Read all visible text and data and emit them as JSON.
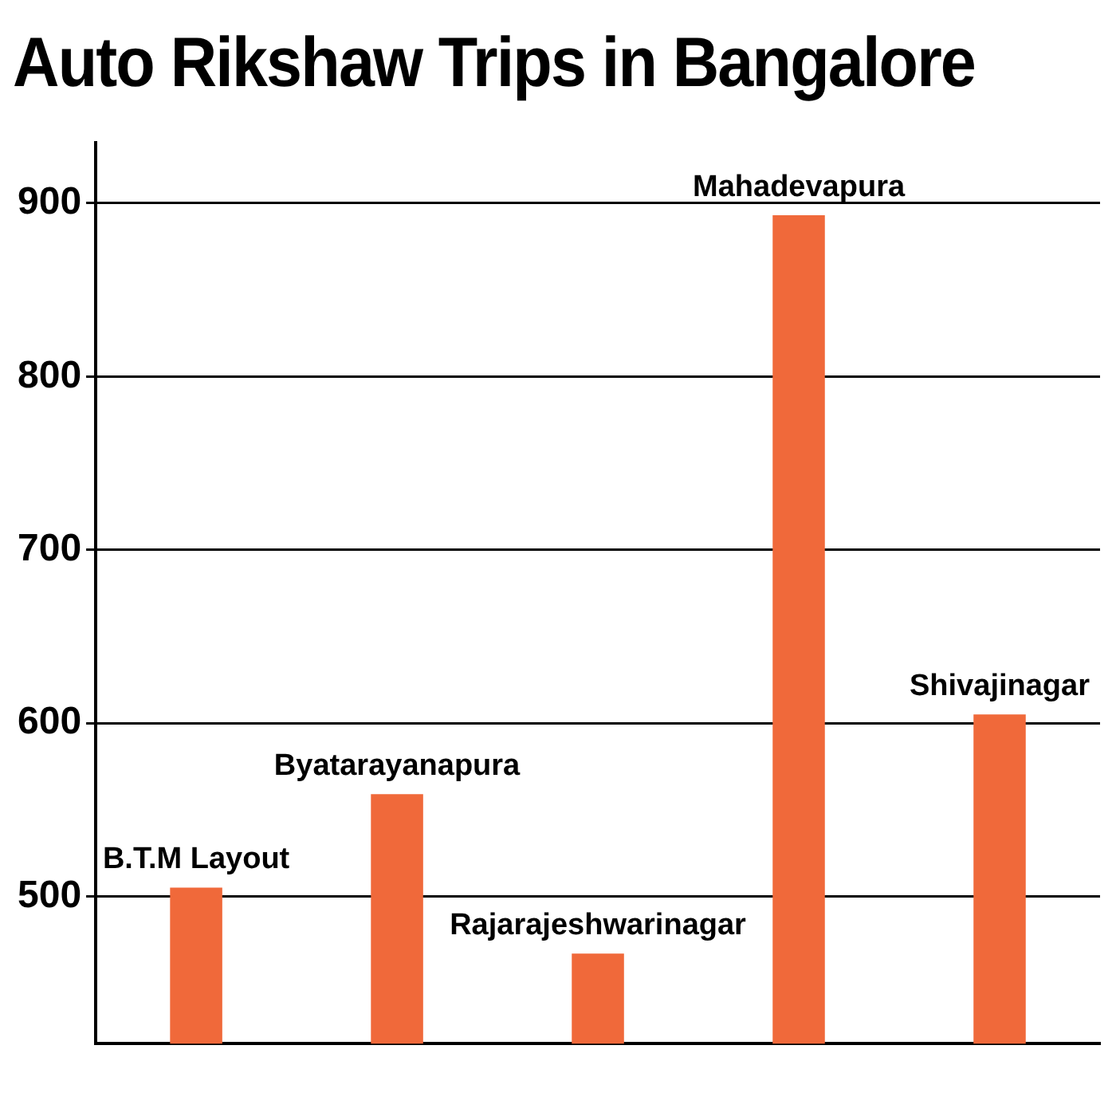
{
  "chart_data": {
    "type": "bar",
    "title": "Auto Rikshaw Trips in Bangalore",
    "categories": [
      "B.T.M Layout",
      "Byatarayanapura",
      "Rajarajeshwarinagar",
      "Mahadevapura",
      "Shivajinagar"
    ],
    "values": [
      505,
      559,
      467,
      893,
      605
    ],
    "color": "#f0693a",
    "ylim": [
      415,
      935
    ],
    "yticks": [
      500,
      600,
      700,
      800,
      900
    ],
    "grid": "y"
  }
}
